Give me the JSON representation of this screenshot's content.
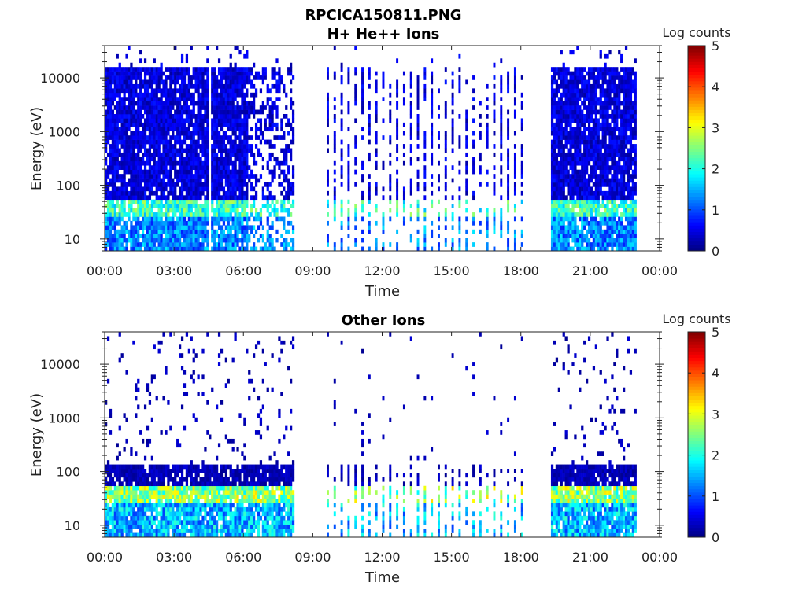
{
  "figure_title": "RPCICA150811.PNG",
  "chart_data": [
    {
      "type": "heatmap",
      "title": "H+ He++ Ions",
      "xlabel": "Time",
      "ylabel": "Energy (eV)",
      "x_ticks": [
        "00:00",
        "03:00",
        "06:00",
        "09:00",
        "12:00",
        "15:00",
        "18:00",
        "21:00",
        "00:00"
      ],
      "x_range_hours": [
        0,
        24
      ],
      "y_scale": "log",
      "y_ticks": [
        "10",
        "100",
        "1000",
        "10000"
      ],
      "y_range_eV": [
        6,
        40000
      ],
      "colorbar": {
        "title": "Log counts",
        "range": [
          0,
          5
        ],
        "ticks": [
          "0",
          "1",
          "2",
          "3",
          "4",
          "5"
        ],
        "colormap": "jet"
      },
      "data_coverage_hours": [
        [
          0.0,
          4.5
        ],
        [
          4.6,
          6.2
        ],
        [
          6.2,
          8.2
        ],
        [
          9.4,
          18.2
        ],
        [
          19.3,
          23.0
        ]
      ],
      "dense_intervals_hours": [
        [
          0.0,
          4.5
        ],
        [
          4.6,
          6.2
        ],
        [
          19.3,
          23.0
        ]
      ],
      "sparse_intervals_hours": [
        [
          6.2,
          8.2
        ]
      ],
      "striped_interval_hours": [
        9.4,
        18.2
      ],
      "typical_level_low_energy": 1.5,
      "typical_level_high_energy": 0.5,
      "peak_band_eV": [
        25,
        50
      ],
      "peak_level": 2.5,
      "upper_cutoff_eV": 15000
    },
    {
      "type": "heatmap",
      "title": "Other Ions",
      "xlabel": "Time",
      "ylabel": "Energy (eV)",
      "x_ticks": [
        "00:00",
        "03:00",
        "06:00",
        "09:00",
        "12:00",
        "15:00",
        "18:00",
        "21:00",
        "00:00"
      ],
      "x_range_hours": [
        0,
        24
      ],
      "y_scale": "log",
      "y_ticks": [
        "10",
        "100",
        "1000",
        "10000"
      ],
      "y_range_eV": [
        6,
        40000
      ],
      "colorbar": {
        "title": "Log counts",
        "range": [
          0,
          5
        ],
        "ticks": [
          "0",
          "1",
          "2",
          "3",
          "4",
          "5"
        ],
        "colormap": "jet"
      },
      "data_coverage_hours": [
        [
          0.0,
          8.2
        ],
        [
          9.4,
          18.2
        ],
        [
          19.3,
          23.0
        ]
      ],
      "dense_intervals_hours": [
        [
          0.0,
          8.2
        ],
        [
          19.3,
          23.0
        ]
      ],
      "striped_interval_hours": [
        9.4,
        18.2
      ],
      "typical_level_low_energy": 1.8,
      "typical_level_high_energy": 0.3,
      "peak_band_eV": [
        25,
        55
      ],
      "peak_level": 3.0,
      "upper_cutoff_eV": 130
    }
  ]
}
